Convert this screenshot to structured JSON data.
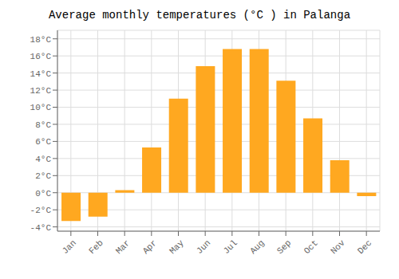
{
  "chart_data": {
    "type": "bar",
    "title": "Average monthly temperatures (°C ) in Palanga",
    "categories": [
      "Jan",
      "Feb",
      "Mar",
      "Apr",
      "May",
      "Jun",
      "Jul",
      "Aug",
      "Sep",
      "Oct",
      "Nov",
      "Dec"
    ],
    "values": [
      -3.3,
      -2.8,
      0.3,
      5.3,
      11.0,
      14.8,
      16.8,
      16.8,
      13.1,
      8.7,
      3.8,
      -0.4
    ],
    "color": "#FFA820",
    "ylim": [
      -4.5,
      19.0
    ],
    "yticks": [
      {
        "value": -4,
        "label": "-4°C"
      },
      {
        "value": -2,
        "label": "-2°C"
      },
      {
        "value": 0,
        "label": "0°C"
      },
      {
        "value": 2,
        "label": "2°C"
      },
      {
        "value": 4,
        "label": "4°C"
      },
      {
        "value": 6,
        "label": "6°C"
      },
      {
        "value": 8,
        "label": "8°C"
      },
      {
        "value": 10,
        "label": "10°C"
      },
      {
        "value": 12,
        "label": "12°C"
      },
      {
        "value": 14,
        "label": "14°C"
      },
      {
        "value": 16,
        "label": "16°C"
      },
      {
        "value": 18,
        "label": "18°C"
      }
    ],
    "grid": true
  }
}
